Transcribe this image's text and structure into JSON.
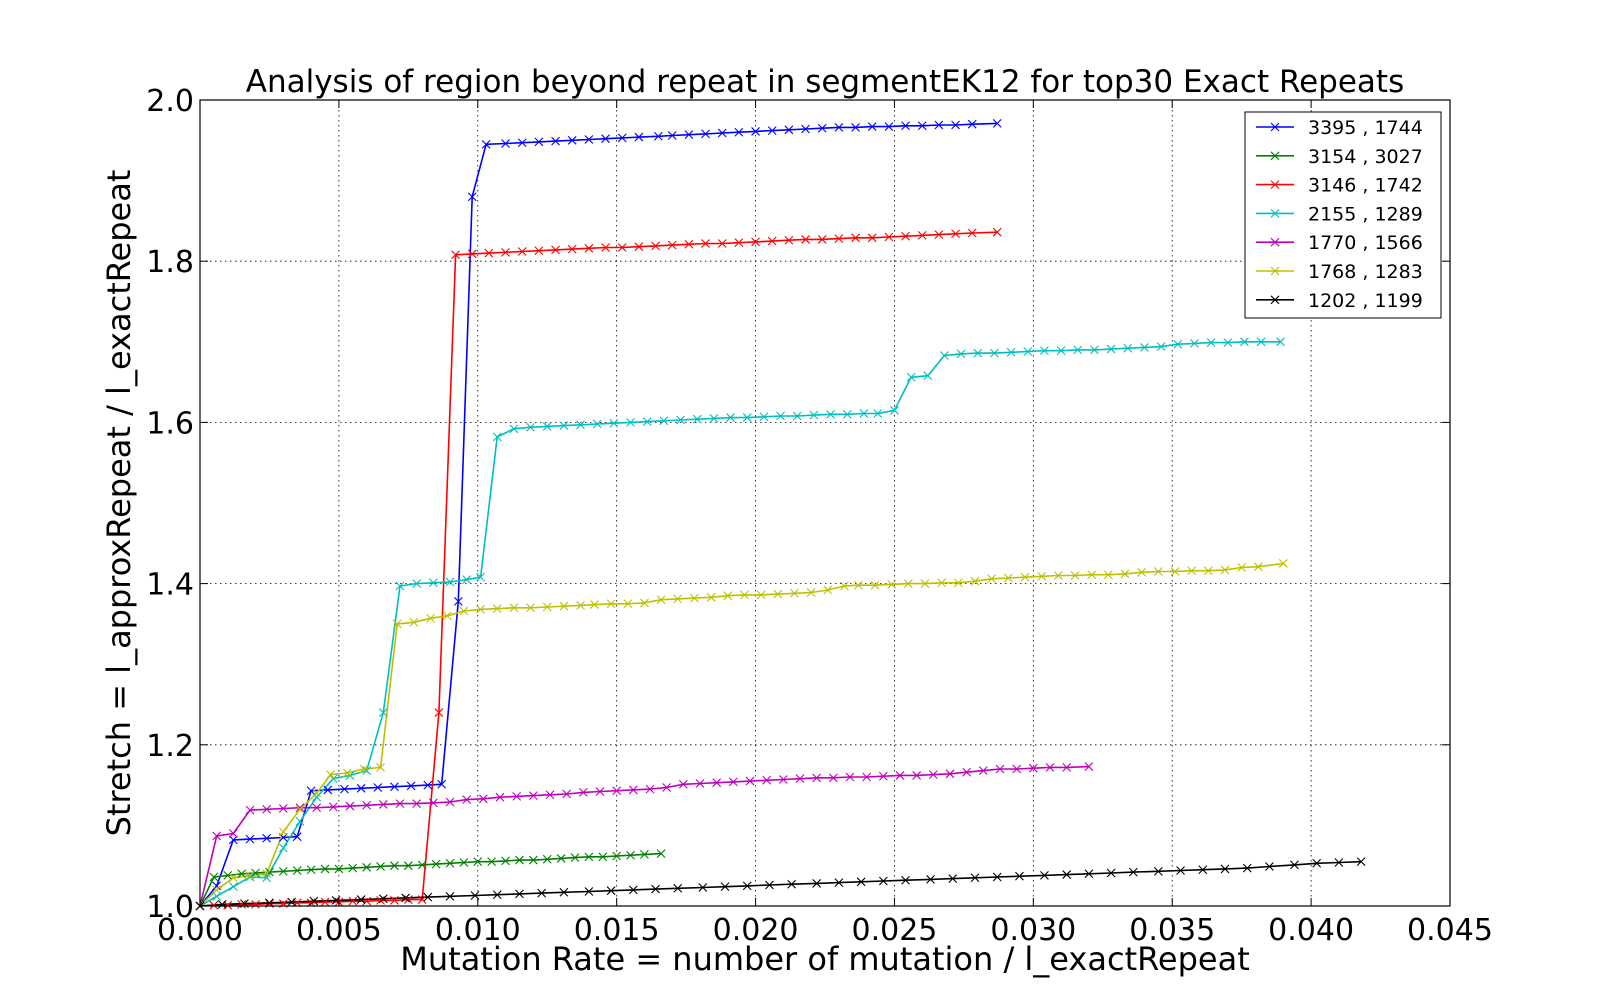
{
  "chart_data": {
    "type": "line",
    "title": "Analysis of region beyond repeat in segmentEK12 for top30 Exact Repeats",
    "xlabel": "Mutation Rate = number of mutation / l_exactRepeat",
    "ylabel": "Stretch =  l_approxRepeat / l_exactRepeat",
    "xlim": [
      0.0,
      0.045
    ],
    "ylim": [
      1.0,
      2.0
    ],
    "xticks": [
      "0.000",
      "0.005",
      "0.010",
      "0.015",
      "0.020",
      "0.025",
      "0.030",
      "0.035",
      "0.040",
      "0.045"
    ],
    "yticks": [
      "1.0",
      "1.2",
      "1.4",
      "1.6",
      "1.8",
      "2.0"
    ],
    "grid": true,
    "legend_position": "top-right",
    "marker": "x",
    "series": [
      {
        "name": "3395 , 1744",
        "color": "#0000ff",
        "x": [
          0.0,
          0.0006,
          0.0012,
          0.0018,
          0.0024,
          0.003,
          0.0035,
          0.004,
          0.0046,
          0.0052,
          0.0058,
          0.0064,
          0.007,
          0.0076,
          0.0082,
          0.0087,
          0.0093,
          0.0098,
          0.0103,
          0.011,
          0.0116,
          0.0122,
          0.0128,
          0.0134,
          0.014,
          0.0146,
          0.0152,
          0.0158,
          0.0165,
          0.017,
          0.0176,
          0.0182,
          0.0188,
          0.0194,
          0.02,
          0.0206,
          0.0212,
          0.0218,
          0.0224,
          0.023,
          0.0236,
          0.0242,
          0.0248,
          0.0254,
          0.026,
          0.0266,
          0.0272,
          0.0278,
          0.0287
        ],
        "y": [
          1.0,
          1.025,
          1.082,
          1.083,
          1.084,
          1.085,
          1.086,
          1.143,
          1.144,
          1.145,
          1.146,
          1.147,
          1.148,
          1.149,
          1.15,
          1.151,
          1.378,
          1.88,
          1.945,
          1.946,
          1.947,
          1.948,
          1.949,
          1.95,
          1.951,
          1.952,
          1.953,
          1.954,
          1.955,
          1.956,
          1.957,
          1.958,
          1.959,
          1.96,
          1.961,
          1.962,
          1.963,
          1.964,
          1.965,
          1.966,
          1.966,
          1.967,
          1.967,
          1.968,
          1.968,
          1.969,
          1.969,
          1.97,
          1.971
        ]
      },
      {
        "name": "3154 , 3027",
        "color": "#008000",
        "x": [
          0.0,
          0.0005,
          0.001,
          0.0015,
          0.002,
          0.0025,
          0.003,
          0.0035,
          0.004,
          0.0045,
          0.005,
          0.0055,
          0.006,
          0.0065,
          0.007,
          0.0075,
          0.008,
          0.0085,
          0.009,
          0.0095,
          0.01,
          0.0105,
          0.011,
          0.0115,
          0.012,
          0.0125,
          0.013,
          0.0135,
          0.014,
          0.0145,
          0.015,
          0.0155,
          0.016,
          0.0166
        ],
        "y": [
          1.0,
          1.036,
          1.038,
          1.04,
          1.041,
          1.042,
          1.043,
          1.044,
          1.045,
          1.046,
          1.046,
          1.047,
          1.048,
          1.049,
          1.05,
          1.05,
          1.051,
          1.052,
          1.053,
          1.054,
          1.055,
          1.055,
          1.056,
          1.057,
          1.057,
          1.058,
          1.059,
          1.06,
          1.061,
          1.061,
          1.062,
          1.063,
          1.064,
          1.065
        ]
      },
      {
        "name": "3146 , 1742",
        "color": "#ff0000",
        "x": [
          0.0,
          0.0005,
          0.001,
          0.0015,
          0.002,
          0.0025,
          0.003,
          0.0035,
          0.004,
          0.0045,
          0.005,
          0.0055,
          0.006,
          0.0065,
          0.007,
          0.0075,
          0.008,
          0.0086,
          0.0092,
          0.0098,
          0.0104,
          0.011,
          0.0116,
          0.0122,
          0.0128,
          0.0134,
          0.014,
          0.0146,
          0.0152,
          0.0158,
          0.0164,
          0.017,
          0.0176,
          0.0182,
          0.0188,
          0.0194,
          0.02,
          0.0206,
          0.0212,
          0.0218,
          0.0224,
          0.023,
          0.0236,
          0.0242,
          0.0248,
          0.0254,
          0.026,
          0.0266,
          0.0272,
          0.0278,
          0.0287
        ],
        "y": [
          1.0,
          1.001,
          1.001,
          1.002,
          1.002,
          1.003,
          1.003,
          1.004,
          1.004,
          1.005,
          1.005,
          1.006,
          1.006,
          1.007,
          1.007,
          1.008,
          1.008,
          1.24,
          1.808,
          1.809,
          1.81,
          1.811,
          1.812,
          1.813,
          1.814,
          1.815,
          1.816,
          1.817,
          1.817,
          1.818,
          1.819,
          1.82,
          1.821,
          1.822,
          1.822,
          1.823,
          1.824,
          1.825,
          1.826,
          1.827,
          1.827,
          1.828,
          1.829,
          1.829,
          1.83,
          1.831,
          1.832,
          1.833,
          1.834,
          1.835,
          1.836
        ]
      },
      {
        "name": "2155 , 1289",
        "color": "#00bfbf",
        "x": [
          0.0,
          0.0006,
          0.0012,
          0.0018,
          0.0024,
          0.003,
          0.0036,
          0.0042,
          0.0048,
          0.0054,
          0.006,
          0.0066,
          0.0072,
          0.0078,
          0.0084,
          0.009,
          0.0096,
          0.0101,
          0.0107,
          0.0113,
          0.0119,
          0.0125,
          0.0131,
          0.0137,
          0.0143,
          0.0149,
          0.0155,
          0.0161,
          0.0167,
          0.0173,
          0.0179,
          0.0185,
          0.0191,
          0.0197,
          0.0203,
          0.0209,
          0.0215,
          0.0221,
          0.0227,
          0.0233,
          0.0239,
          0.0244,
          0.025,
          0.0256,
          0.0262,
          0.0268,
          0.0274,
          0.028,
          0.0286,
          0.0292,
          0.0298,
          0.0304,
          0.031,
          0.0316,
          0.0322,
          0.0328,
          0.0334,
          0.034,
          0.0346,
          0.0352,
          0.0358,
          0.0364,
          0.037,
          0.0376,
          0.0382,
          0.0389
        ],
        "y": [
          1.0,
          1.012,
          1.024,
          1.036,
          1.035,
          1.072,
          1.105,
          1.135,
          1.158,
          1.162,
          1.168,
          1.24,
          1.397,
          1.4,
          1.401,
          1.402,
          1.405,
          1.408,
          1.582,
          1.592,
          1.594,
          1.595,
          1.596,
          1.597,
          1.598,
          1.599,
          1.6,
          1.601,
          1.602,
          1.603,
          1.604,
          1.605,
          1.606,
          1.606,
          1.607,
          1.608,
          1.608,
          1.609,
          1.61,
          1.61,
          1.611,
          1.611,
          1.615,
          1.656,
          1.658,
          1.683,
          1.685,
          1.686,
          1.686,
          1.687,
          1.688,
          1.689,
          1.689,
          1.69,
          1.69,
          1.691,
          1.692,
          1.693,
          1.694,
          1.697,
          1.698,
          1.699,
          1.699,
          1.7,
          1.7,
          1.7
        ]
      },
      {
        "name": "1770 , 1566",
        "color": "#bf00bf",
        "x": [
          0.0,
          0.0006,
          0.0012,
          0.0018,
          0.0024,
          0.003,
          0.0036,
          0.0042,
          0.0048,
          0.0054,
          0.006,
          0.0066,
          0.0072,
          0.0078,
          0.0084,
          0.009,
          0.0096,
          0.0102,
          0.0108,
          0.0114,
          0.012,
          0.0126,
          0.0132,
          0.0138,
          0.0144,
          0.015,
          0.0156,
          0.0162,
          0.0168,
          0.0174,
          0.018,
          0.0186,
          0.0192,
          0.0198,
          0.0204,
          0.021,
          0.0216,
          0.0222,
          0.0228,
          0.0234,
          0.024,
          0.0246,
          0.0252,
          0.0258,
          0.0264,
          0.027,
          0.0276,
          0.0282,
          0.0288,
          0.0294,
          0.03,
          0.0306,
          0.0312,
          0.032
        ],
        "y": [
          1.0,
          1.087,
          1.09,
          1.119,
          1.12,
          1.121,
          1.122,
          1.122,
          1.123,
          1.124,
          1.125,
          1.126,
          1.127,
          1.127,
          1.128,
          1.129,
          1.132,
          1.133,
          1.135,
          1.136,
          1.137,
          1.138,
          1.139,
          1.141,
          1.142,
          1.143,
          1.144,
          1.145,
          1.147,
          1.151,
          1.152,
          1.153,
          1.154,
          1.155,
          1.156,
          1.157,
          1.158,
          1.159,
          1.159,
          1.16,
          1.16,
          1.161,
          1.162,
          1.162,
          1.163,
          1.164,
          1.166,
          1.168,
          1.17,
          1.17,
          1.171,
          1.172,
          1.172,
          1.173
        ]
      },
      {
        "name": "1768 , 1283",
        "color": "#bfbf00",
        "x": [
          0.0,
          0.0006,
          0.0012,
          0.0018,
          0.0024,
          0.003,
          0.0036,
          0.0042,
          0.0047,
          0.0053,
          0.0059,
          0.0065,
          0.0071,
          0.0077,
          0.0083,
          0.0089,
          0.0095,
          0.0101,
          0.0107,
          0.0113,
          0.0119,
          0.0125,
          0.0131,
          0.0137,
          0.0142,
          0.0148,
          0.0154,
          0.016,
          0.0166,
          0.0172,
          0.0178,
          0.0184,
          0.019,
          0.0196,
          0.0202,
          0.0208,
          0.0214,
          0.022,
          0.0226,
          0.0232,
          0.0237,
          0.0243,
          0.0249,
          0.0255,
          0.0261,
          0.0267,
          0.0273,
          0.0279,
          0.0285,
          0.0291,
          0.0297,
          0.0303,
          0.0309,
          0.0315,
          0.0321,
          0.0327,
          0.0333,
          0.0339,
          0.0345,
          0.0351,
          0.0357,
          0.0363,
          0.0369,
          0.0375,
          0.0381,
          0.039
        ],
        "y": [
          1.0,
          1.02,
          1.035,
          1.038,
          1.04,
          1.092,
          1.12,
          1.14,
          1.163,
          1.165,
          1.17,
          1.172,
          1.35,
          1.352,
          1.357,
          1.36,
          1.366,
          1.368,
          1.369,
          1.37,
          1.37,
          1.371,
          1.372,
          1.373,
          1.374,
          1.375,
          1.375,
          1.376,
          1.38,
          1.381,
          1.382,
          1.383,
          1.385,
          1.386,
          1.386,
          1.387,
          1.388,
          1.389,
          1.392,
          1.397,
          1.398,
          1.398,
          1.399,
          1.4,
          1.4,
          1.401,
          1.401,
          1.403,
          1.406,
          1.407,
          1.408,
          1.409,
          1.41,
          1.41,
          1.411,
          1.411,
          1.412,
          1.414,
          1.415,
          1.415,
          1.416,
          1.416,
          1.417,
          1.42,
          1.421,
          1.425
        ]
      },
      {
        "name": "1202 , 1199",
        "color": "#000000",
        "x": [
          0.0,
          0.0008,
          0.0016,
          0.0025,
          0.0033,
          0.0041,
          0.0049,
          0.0058,
          0.0066,
          0.0074,
          0.0082,
          0.009,
          0.0099,
          0.0107,
          0.0115,
          0.0123,
          0.0131,
          0.014,
          0.0148,
          0.0156,
          0.0164,
          0.0172,
          0.0181,
          0.0189,
          0.0197,
          0.0205,
          0.0213,
          0.0222,
          0.023,
          0.0238,
          0.0246,
          0.0254,
          0.0263,
          0.0271,
          0.0279,
          0.0287,
          0.0295,
          0.0304,
          0.0312,
          0.032,
          0.0328,
          0.0336,
          0.0345,
          0.0353,
          0.0361,
          0.0369,
          0.0377,
          0.0385,
          0.0394,
          0.0402,
          0.041,
          0.0418
        ],
        "y": [
          1.0,
          1.002,
          1.003,
          1.004,
          1.005,
          1.006,
          1.007,
          1.008,
          1.009,
          1.01,
          1.011,
          1.012,
          1.013,
          1.014,
          1.015,
          1.016,
          1.017,
          1.018,
          1.019,
          1.02,
          1.021,
          1.022,
          1.023,
          1.024,
          1.025,
          1.026,
          1.027,
          1.028,
          1.029,
          1.03,
          1.031,
          1.032,
          1.033,
          1.034,
          1.035,
          1.036,
          1.037,
          1.038,
          1.039,
          1.04,
          1.041,
          1.042,
          1.043,
          1.044,
          1.045,
          1.046,
          1.047,
          1.049,
          1.051,
          1.053,
          1.054,
          1.055
        ]
      }
    ]
  }
}
